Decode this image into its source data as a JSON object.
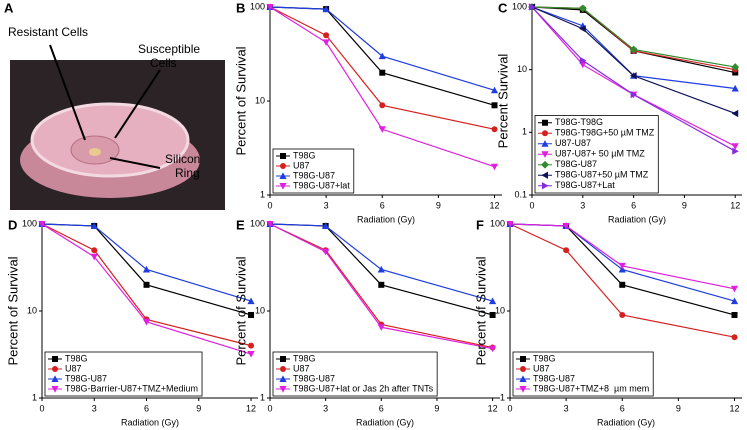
{
  "photo": {
    "panel": "A",
    "labels": [
      [
        "Resistant Cells"
      ],
      [
        "Susceptible",
        "Cells"
      ],
      [
        "Silicon",
        "Ring"
      ]
    ]
  },
  "chart_data": [
    {
      "panel": "B",
      "type": "line",
      "log_y": true,
      "xlabel": "Radiation (Gy)",
      "ylabel": "Percent of Survival",
      "x": [
        0,
        3,
        6,
        12
      ],
      "xlim": [
        0,
        12.4
      ],
      "xticks": [
        0,
        3,
        6,
        9,
        12
      ],
      "ylim": [
        1,
        100
      ],
      "yticks": [
        1,
        10,
        100
      ],
      "legend": "lower left",
      "series": [
        {
          "name": "T98G",
          "color": "#000000",
          "marker": "square",
          "values": [
            100,
            95,
            20,
            9
          ]
        },
        {
          "name": "U87",
          "color": "#d62020",
          "marker": "circle",
          "values": [
            100,
            50,
            9,
            5
          ]
        },
        {
          "name": "T98G-U87",
          "color": "#1f3de0",
          "marker": "triangle-up",
          "values": [
            100,
            95,
            30,
            13
          ]
        },
        {
          "name": "T98G-U87+lat",
          "color": "#e020e0",
          "marker": "triangle-down",
          "values": [
            100,
            42,
            5,
            2
          ]
        }
      ]
    },
    {
      "panel": "C",
      "type": "line",
      "log_y": true,
      "xlabel": "Radiation (Gy)",
      "ylabel": "Percent Survival",
      "x": [
        0,
        3,
        6,
        12
      ],
      "xlim": [
        0,
        12.4
      ],
      "xticks": [
        0,
        3,
        6,
        9,
        12
      ],
      "ylim": [
        0.1,
        100
      ],
      "yticks": [
        0.1,
        1,
        10,
        100
      ],
      "legend": "lower left",
      "series": [
        {
          "name": "T98G-T98G",
          "color": "#000000",
          "marker": "square",
          "values": [
            100,
            90,
            20,
            9
          ]
        },
        {
          "name": "T98G-T98G+50 µM TMZ",
          "color": "#d62020",
          "marker": "circle",
          "values": [
            100,
            95,
            20,
            10
          ]
        },
        {
          "name": "U87-U87",
          "color": "#1f3de0",
          "marker": "triangle-up",
          "values": [
            100,
            50,
            8,
            5
          ]
        },
        {
          "name": "U87-U87+ 50 µM TMZ",
          "color": "#e020e0",
          "marker": "triangle-down",
          "values": [
            100,
            12,
            4,
            0.6
          ]
        },
        {
          "name": "T98G-U87",
          "color": "#2e8b2e",
          "marker": "diamond",
          "values": [
            100,
            95,
            21,
            11
          ]
        },
        {
          "name": "T98G-U87+50 µM TMZ",
          "color": "#10105a",
          "marker": "triangle-left",
          "values": [
            100,
            45,
            8,
            2
          ]
        },
        {
          "name": "T98G-U87+Lat",
          "color": "#8a2be2",
          "marker": "triangle-right",
          "values": [
            100,
            14,
            4,
            0.5
          ]
        }
      ]
    },
    {
      "panel": "D",
      "type": "line",
      "log_y": true,
      "xlabel": "Radiation (Gy)",
      "ylabel": "Percent of Survival",
      "x": [
        0,
        3,
        6,
        12
      ],
      "xlim": [
        0,
        12.4
      ],
      "xticks": [
        0,
        3,
        6,
        9,
        12
      ],
      "ylim": [
        1,
        100
      ],
      "yticks": [
        1,
        10,
        100
      ],
      "legend": "lower left",
      "series": [
        {
          "name": "T98G",
          "color": "#000000",
          "marker": "square",
          "values": [
            100,
            95,
            20,
            9
          ]
        },
        {
          "name": "U87",
          "color": "#d62020",
          "marker": "circle",
          "values": [
            100,
            50,
            8,
            4
          ]
        },
        {
          "name": "T98G-U87",
          "color": "#1f3de0",
          "marker": "triangle-up",
          "values": [
            100,
            95,
            30,
            13
          ]
        },
        {
          "name": "T98G-Barrier-U87+TMZ+Medium",
          "color": "#e020e0",
          "marker": "triangle-down",
          "values": [
            100,
            42,
            7.5,
            3.2
          ]
        }
      ]
    },
    {
      "panel": "E",
      "type": "line",
      "log_y": true,
      "xlabel": "Radiation (Gy)",
      "ylabel": "Percent of Survival",
      "x": [
        0,
        3,
        6,
        12
      ],
      "xlim": [
        0,
        12.4
      ],
      "xticks": [
        0,
        3,
        6,
        9,
        12
      ],
      "ylim": [
        1,
        100
      ],
      "yticks": [
        1,
        10,
        100
      ],
      "legend": "lower left",
      "series": [
        {
          "name": "T98G",
          "color": "#000000",
          "marker": "square",
          "values": [
            100,
            95,
            20,
            9
          ]
        },
        {
          "name": "U87",
          "color": "#d62020",
          "marker": "circle",
          "values": [
            100,
            50,
            7,
            3.8
          ]
        },
        {
          "name": "T98G-U87",
          "color": "#1f3de0",
          "marker": "triangle-up",
          "values": [
            100,
            95,
            30,
            13
          ]
        },
        {
          "name": "T98G-U87+lat or Jas 2h after TNTs",
          "color": "#e020e0",
          "marker": "triangle-down",
          "values": [
            100,
            48,
            6.5,
            3.7
          ]
        }
      ]
    },
    {
      "panel": "F",
      "type": "line",
      "log_y": true,
      "xlabel": "Radiation (Gy)",
      "ylabel": "Percent of Survival",
      "x": [
        0,
        3,
        6,
        12
      ],
      "xlim": [
        0,
        12.4
      ],
      "xticks": [
        0,
        3,
        6,
        9,
        12
      ],
      "ylim": [
        1,
        100
      ],
      "yticks": [
        1,
        10,
        100
      ],
      "legend": "lower left",
      "series": [
        {
          "name": "T98G",
          "color": "#000000",
          "marker": "square",
          "values": [
            100,
            95,
            20,
            9
          ]
        },
        {
          "name": "U87",
          "color": "#d62020",
          "marker": "circle",
          "values": [
            100,
            50,
            9,
            5
          ]
        },
        {
          "name": "T98G-U87",
          "color": "#1f3de0",
          "marker": "triangle-up",
          "values": [
            100,
            95,
            30,
            13
          ]
        },
        {
          "name": "T98G-U87+TMZ+8  µm mem",
          "color": "#e020e0",
          "marker": "triangle-down",
          "values": [
            100,
            95,
            33,
            18
          ]
        }
      ]
    }
  ]
}
